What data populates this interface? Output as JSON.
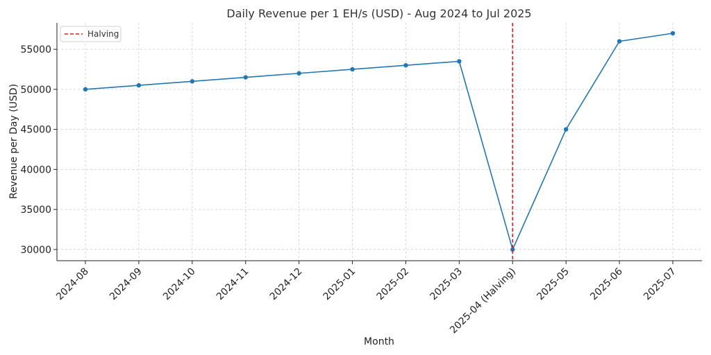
{
  "chart_data": {
    "type": "line",
    "title": "Daily Revenue per 1 EH/s (USD) - Aug 2024 to Jul 2025",
    "xlabel": "Month",
    "ylabel": "Revenue per Day (USD)",
    "categories": [
      "2024-08",
      "2024-09",
      "2024-10",
      "2024-11",
      "2024-12",
      "2025-01",
      "2025-02",
      "2025-03",
      "2025-04 (Halving)",
      "2025-05",
      "2025-06",
      "2025-07"
    ],
    "series": [
      {
        "values": [
          50000,
          50500,
          51000,
          51500,
          52000,
          52500,
          53000,
          53500,
          30000,
          45000,
          56000,
          57000
        ],
        "color": "#1f77b4"
      }
    ],
    "ylim": [
      28600,
      58300
    ],
    "yticks": [
      30000,
      35000,
      40000,
      45000,
      50000,
      55000
    ],
    "grid": true,
    "annotations": [
      {
        "type": "vline",
        "category": "2025-04 (Halving)",
        "label": "Halving",
        "color": "#e41a1c",
        "style": "dashed"
      }
    ],
    "legend": {
      "placement": "top-left",
      "entries": [
        "Halving"
      ]
    }
  }
}
